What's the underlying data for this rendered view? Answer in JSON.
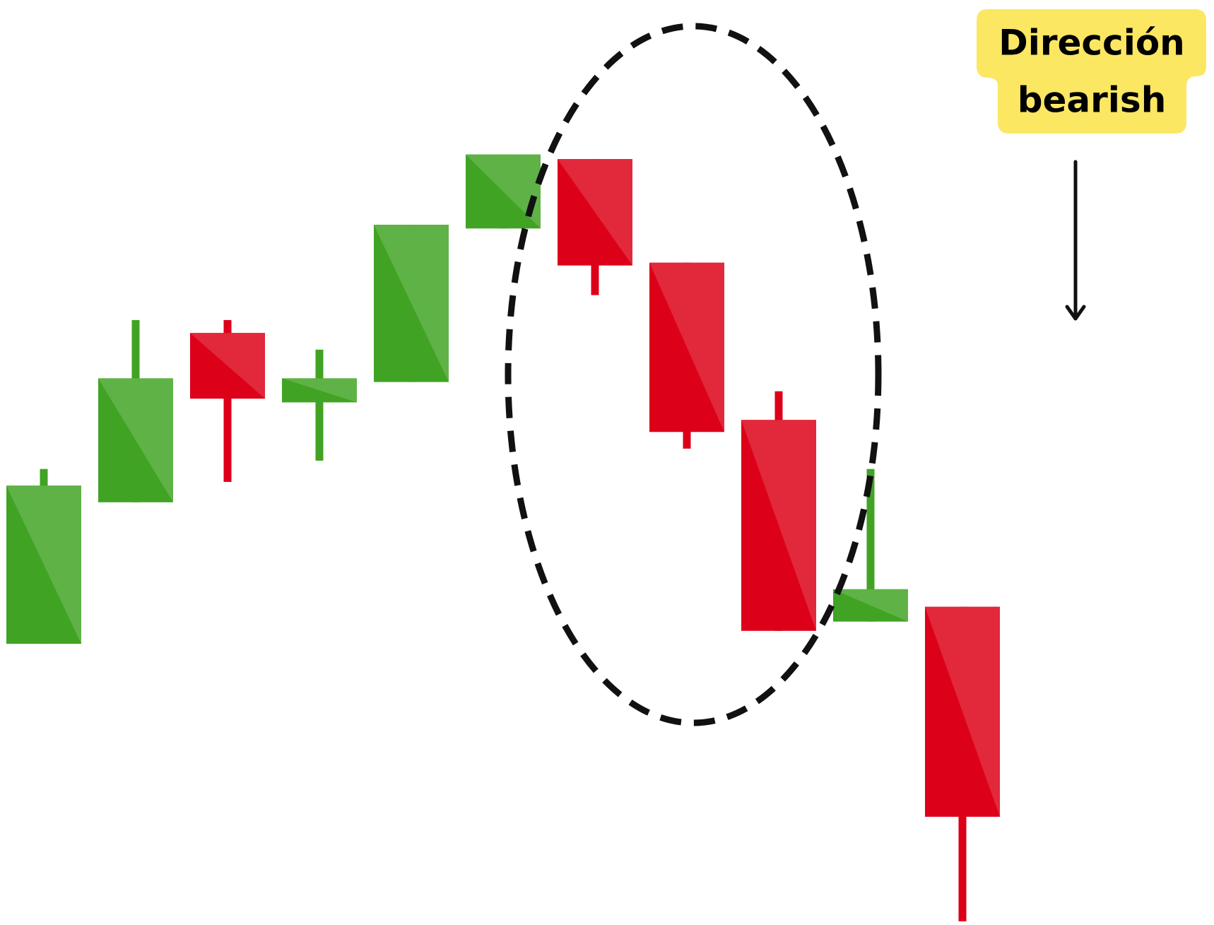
{
  "chart_data": {
    "type": "candlestick",
    "annotation": [
      "Dirección",
      "bearish"
    ],
    "up_color": "#41a324",
    "up_shade": "#5fb246",
    "down_color": "#dd0019",
    "down_shade": "#e2283b",
    "ylim": [
      0,
      100
    ],
    "candles": [
      {
        "open": 30.4,
        "high": 49.3,
        "low": 30.4,
        "close": 47.5
      },
      {
        "open": 45.7,
        "high": 65.4,
        "low": 45.7,
        "close": 59.1
      },
      {
        "open": 64.0,
        "high": 65.4,
        "low": 47.9,
        "close": 56.9
      },
      {
        "open": 56.5,
        "high": 62.2,
        "low": 50.2,
        "close": 59.1
      },
      {
        "open": 58.7,
        "high": 75.7,
        "low": 58.7,
        "close": 75.7
      },
      {
        "open": 75.3,
        "high": 83.3,
        "low": 75.3,
        "close": 83.3
      },
      {
        "open": 82.8,
        "high": 82.8,
        "low": 68.1,
        "close": 71.3
      },
      {
        "open": 71.6,
        "high": 71.6,
        "low": 51.5,
        "close": 53.3
      },
      {
        "open": 54.6,
        "high": 57.7,
        "low": 31.8,
        "close": 31.8
      },
      {
        "open": 32.8,
        "high": 49.3,
        "low": 32.8,
        "close": 36.3
      },
      {
        "open": 34.4,
        "high": 34.4,
        "low": 0.4,
        "close": 11.7
      }
    ]
  }
}
